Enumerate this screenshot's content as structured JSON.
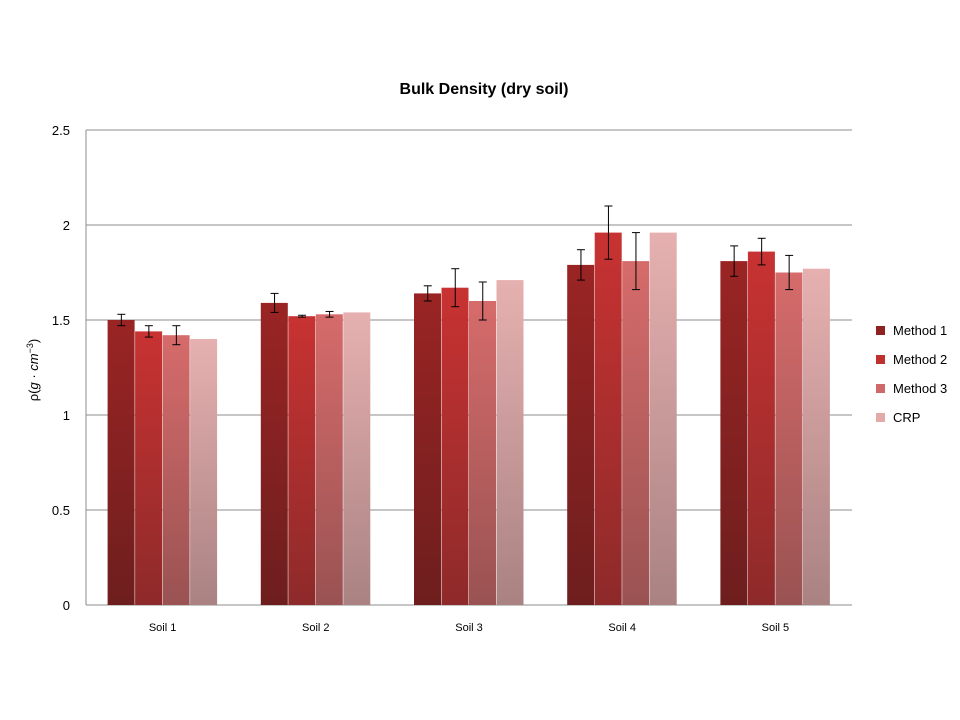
{
  "chart_data": {
    "type": "bar",
    "title": "Bulk Density (dry soil)",
    "xlabel": "",
    "ylabel": {
      "rho": "ρ",
      "open": "(",
      "g": "g",
      "dot": " · ",
      "cm": "cm",
      "exp": "−3",
      "close": ")"
    },
    "ylim": [
      0,
      2.5
    ],
    "yticks": [
      "0",
      "0.5",
      "1",
      "1.5",
      "2",
      "2.5"
    ],
    "ytick_values": [
      0,
      0.5,
      1,
      1.5,
      2,
      2.5
    ],
    "grid": true,
    "legend_position": "right",
    "categories": [
      "Soil 1",
      "Soil 2",
      "Soil 3",
      "Soil 4",
      "Soil 5"
    ],
    "series": [
      {
        "name": "Method 1",
        "color": "#8e2222",
        "values": [
          1.5,
          1.59,
          1.64,
          1.79,
          1.81
        ],
        "errors": [
          0.03,
          0.05,
          0.04,
          0.08,
          0.08
        ]
      },
      {
        "name": "Method 2",
        "color": "#c0302f",
        "values": [
          1.44,
          1.52,
          1.67,
          1.96,
          1.86
        ],
        "errors": [
          0.03,
          0.005,
          0.1,
          0.14,
          0.07
        ]
      },
      {
        "name": "Method 3",
        "color": "#d06a6a",
        "values": [
          1.42,
          1.53,
          1.6,
          1.81,
          1.75
        ],
        "errors": [
          0.05,
          0.015,
          0.1,
          0.15,
          0.09
        ]
      },
      {
        "name": "CRP",
        "color": "#e4aaaa",
        "values": [
          1.4,
          1.54,
          1.71,
          1.96,
          1.77
        ],
        "errors": [
          null,
          null,
          null,
          null,
          null
        ]
      }
    ]
  }
}
